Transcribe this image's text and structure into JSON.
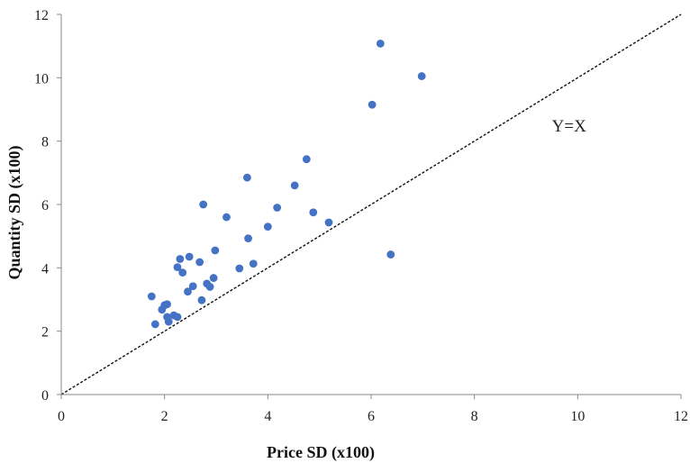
{
  "chart_data": {
    "type": "scatter",
    "xlabel": "Price SD (x100)",
    "ylabel": "Quantity SD (x100)",
    "xlim": [
      0,
      12
    ],
    "ylim": [
      0,
      12
    ],
    "x_ticks": [
      "0",
      "2",
      "4",
      "6",
      "8",
      "10",
      "12"
    ],
    "y_ticks": [
      "0",
      "2",
      "4",
      "6",
      "8",
      "10",
      "12"
    ],
    "grid": false,
    "reference_line": {
      "label": "Y=X",
      "from": [
        0,
        0
      ],
      "to": [
        12,
        12
      ],
      "style": "dotted"
    },
    "annotation_position": [
      9.5,
      8.3
    ],
    "marker_color": "#4472C4",
    "points": [
      {
        "x": 1.75,
        "y": 3.1
      },
      {
        "x": 1.82,
        "y": 2.22
      },
      {
        "x": 1.95,
        "y": 2.68
      },
      {
        "x": 2.0,
        "y": 2.82
      },
      {
        "x": 2.05,
        "y": 2.85
      },
      {
        "x": 2.05,
        "y": 2.45
      },
      {
        "x": 2.08,
        "y": 2.3
      },
      {
        "x": 2.18,
        "y": 2.5
      },
      {
        "x": 2.25,
        "y": 2.45
      },
      {
        "x": 2.25,
        "y": 4.02
      },
      {
        "x": 2.3,
        "y": 4.28
      },
      {
        "x": 2.35,
        "y": 3.85
      },
      {
        "x": 2.45,
        "y": 3.25
      },
      {
        "x": 2.48,
        "y": 4.35
      },
      {
        "x": 2.55,
        "y": 3.42
      },
      {
        "x": 2.68,
        "y": 4.18
      },
      {
        "x": 2.72,
        "y": 2.98
      },
      {
        "x": 2.75,
        "y": 6.0
      },
      {
        "x": 2.82,
        "y": 3.5
      },
      {
        "x": 2.88,
        "y": 3.4
      },
      {
        "x": 2.95,
        "y": 3.68
      },
      {
        "x": 2.98,
        "y": 4.55
      },
      {
        "x": 3.2,
        "y": 5.6
      },
      {
        "x": 3.45,
        "y": 3.98
      },
      {
        "x": 3.6,
        "y": 6.85
      },
      {
        "x": 3.62,
        "y": 4.93
      },
      {
        "x": 3.72,
        "y": 4.13
      },
      {
        "x": 4.0,
        "y": 5.3
      },
      {
        "x": 4.18,
        "y": 5.9
      },
      {
        "x": 4.52,
        "y": 6.6
      },
      {
        "x": 4.75,
        "y": 7.43
      },
      {
        "x": 4.88,
        "y": 5.75
      },
      {
        "x": 5.18,
        "y": 5.43
      },
      {
        "x": 6.02,
        "y": 9.15
      },
      {
        "x": 6.18,
        "y": 11.08
      },
      {
        "x": 6.38,
        "y": 4.42
      },
      {
        "x": 6.98,
        "y": 10.05
      }
    ]
  }
}
